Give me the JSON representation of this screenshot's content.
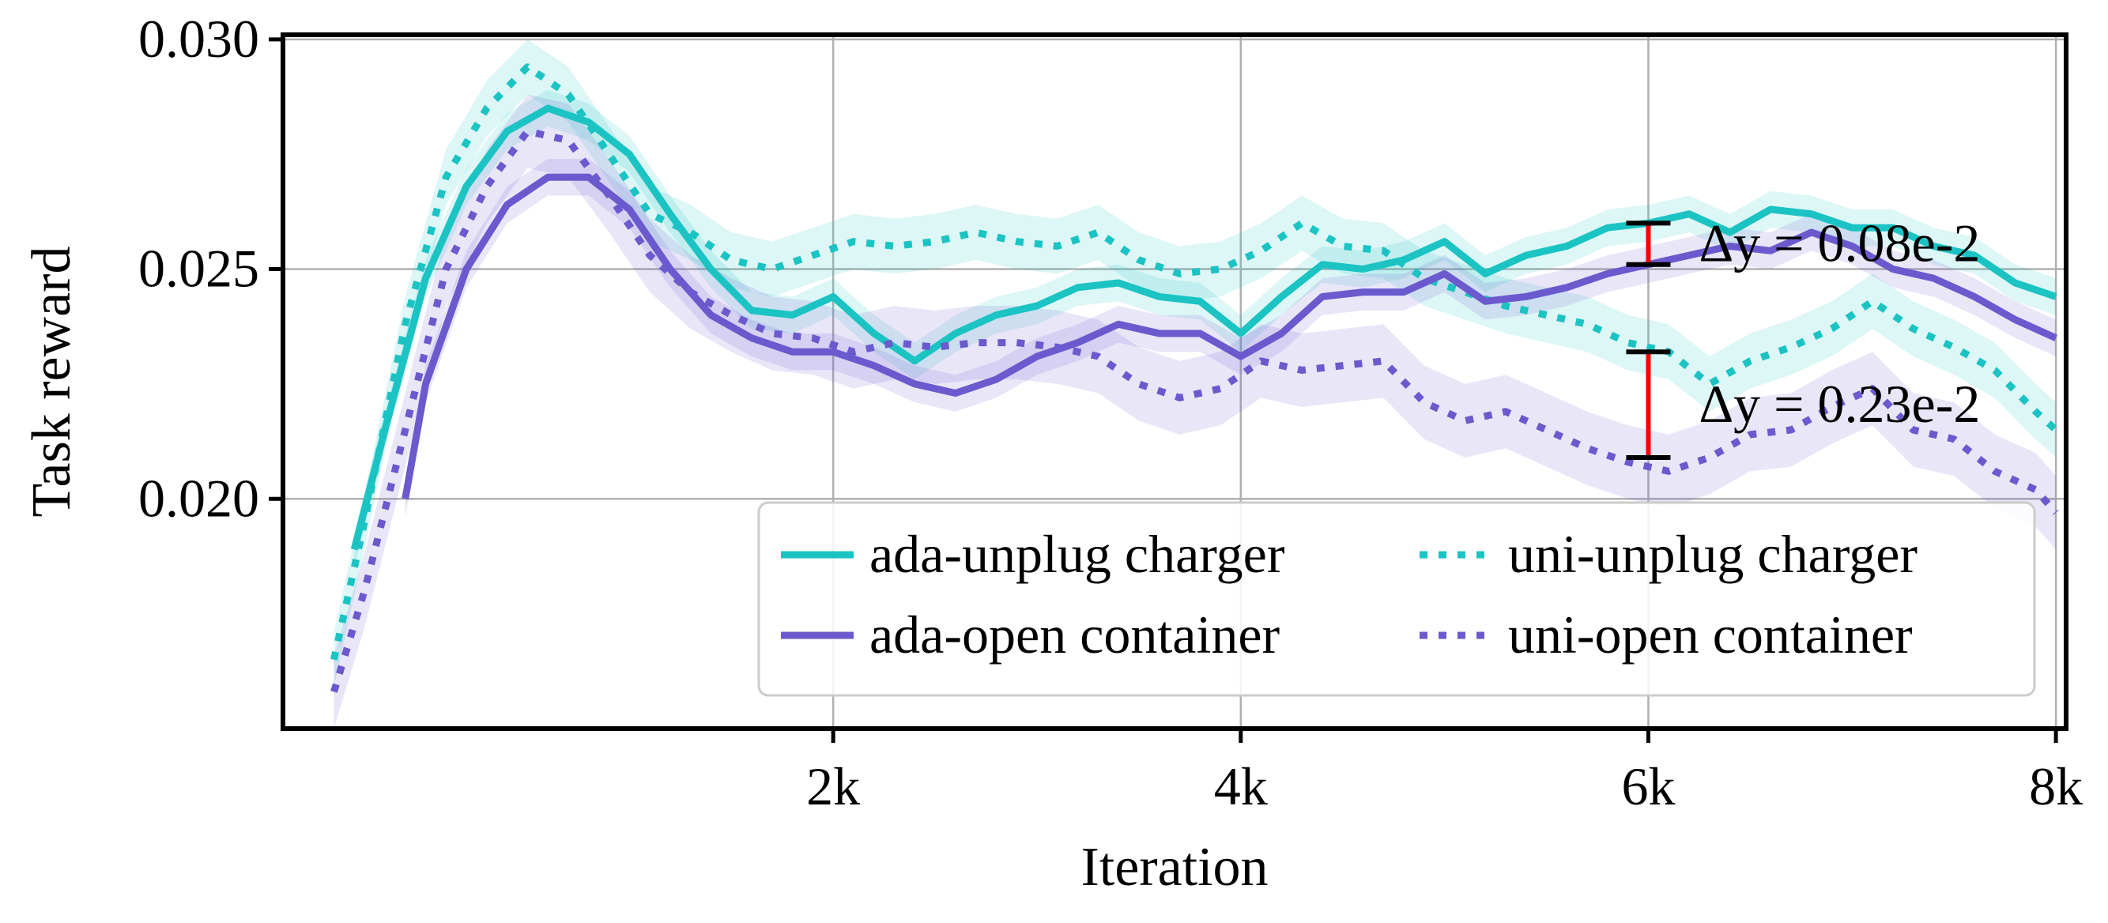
{
  "chart_data": {
    "type": "line",
    "xlabel": "Iteration",
    "ylabel": "Task reward",
    "xlim": [
      -700,
      8050
    ],
    "ylim": [
      0.015,
      0.0301
    ],
    "xticks": [
      {
        "value": 2000,
        "label": "2k"
      },
      {
        "value": 4000,
        "label": "4k"
      },
      {
        "value": 6000,
        "label": "6k"
      },
      {
        "value": 8000,
        "label": "8k"
      }
    ],
    "yticks": [
      {
        "value": 0.02,
        "label": "0.020"
      },
      {
        "value": 0.025,
        "label": "0.025"
      },
      {
        "value": 0.03,
        "label": "0.030"
      }
    ],
    "grid": true,
    "legend": {
      "position": "lower-right",
      "columns": 2
    },
    "series": [
      {
        "name": "ada-unplug charger",
        "color": "#1BC3C3",
        "style": "solid",
        "x": [
          -350,
          -200,
          0,
          200,
          400,
          600,
          800,
          1000,
          1200,
          1400,
          1600,
          1800,
          2000,
          2200,
          2400,
          2600,
          2800,
          3000,
          3200,
          3400,
          3600,
          3800,
          4000,
          4200,
          4400,
          4600,
          4800,
          5000,
          5200,
          5400,
          5600,
          5800,
          6000,
          6200,
          6400,
          6600,
          6800,
          7000,
          7200,
          7400,
          7600,
          7800,
          8000
        ],
        "y": [
          0.0189,
          0.0215,
          0.0248,
          0.0268,
          0.028,
          0.0285,
          0.0282,
          0.0275,
          0.0262,
          0.025,
          0.0241,
          0.024,
          0.0244,
          0.0236,
          0.023,
          0.0236,
          0.024,
          0.0242,
          0.0246,
          0.0247,
          0.0244,
          0.0243,
          0.0236,
          0.0244,
          0.0251,
          0.025,
          0.0252,
          0.0256,
          0.0249,
          0.0253,
          0.0255,
          0.0259,
          0.026,
          0.0262,
          0.0258,
          0.0263,
          0.0262,
          0.0259,
          0.0259,
          0.0255,
          0.0253,
          0.0247,
          0.0244
        ],
        "band": 0.0004
      },
      {
        "name": "uni-unplug charger",
        "color": "#1BC3C3",
        "style": "dotted",
        "x": [
          -450,
          -300,
          -100,
          100,
          300,
          500,
          700,
          900,
          1100,
          1300,
          1500,
          1700,
          1900,
          2100,
          2300,
          2500,
          2700,
          2900,
          3100,
          3300,
          3500,
          3700,
          3900,
          4100,
          4300,
          4500,
          4700,
          4900,
          5100,
          5300,
          5500,
          5700,
          5900,
          6100,
          6300,
          6500,
          6700,
          6900,
          7100,
          7300,
          7500,
          7700,
          7900,
          8000
        ],
        "y": [
          0.0165,
          0.0195,
          0.0238,
          0.027,
          0.0285,
          0.0294,
          0.0288,
          0.0275,
          0.0262,
          0.0258,
          0.0252,
          0.025,
          0.0253,
          0.0256,
          0.0255,
          0.0256,
          0.0258,
          0.0256,
          0.0255,
          0.0258,
          0.0252,
          0.0249,
          0.025,
          0.0254,
          0.026,
          0.0255,
          0.0254,
          0.0248,
          0.0245,
          0.0242,
          0.024,
          0.0238,
          0.0234,
          0.0232,
          0.0225,
          0.023,
          0.0233,
          0.0237,
          0.0243,
          0.0237,
          0.0233,
          0.0228,
          0.0219,
          0.0215
        ],
        "band": 0.0006
      },
      {
        "name": "ada-open container",
        "color": "#6A5ACD",
        "style": "solid",
        "x": [
          -100,
          0,
          200,
          400,
          600,
          800,
          1000,
          1200,
          1400,
          1600,
          1800,
          2000,
          2200,
          2400,
          2600,
          2800,
          3000,
          3200,
          3400,
          3600,
          3800,
          4000,
          4200,
          4400,
          4600,
          4800,
          5000,
          5200,
          5400,
          5600,
          5800,
          6000,
          6200,
          6400,
          6600,
          6800,
          7000,
          7200,
          7400,
          7600,
          7800,
          8000
        ],
        "y": [
          0.02,
          0.0225,
          0.025,
          0.0264,
          0.027,
          0.027,
          0.0263,
          0.025,
          0.024,
          0.0235,
          0.0232,
          0.0232,
          0.0229,
          0.0225,
          0.0223,
          0.0226,
          0.0231,
          0.0234,
          0.0238,
          0.0236,
          0.0236,
          0.0231,
          0.0236,
          0.0244,
          0.0245,
          0.0245,
          0.0249,
          0.0243,
          0.0244,
          0.0246,
          0.0249,
          0.0251,
          0.0253,
          0.0255,
          0.0254,
          0.0258,
          0.0255,
          0.025,
          0.0248,
          0.0244,
          0.0239,
          0.0235
        ],
        "band": 0.0004
      },
      {
        "name": "uni-open container",
        "color": "#6A5ACD",
        "style": "dotted",
        "x": [
          -450,
          -300,
          -100,
          100,
          300,
          500,
          700,
          900,
          1100,
          1300,
          1500,
          1700,
          1900,
          2100,
          2300,
          2500,
          2700,
          2900,
          3100,
          3300,
          3500,
          3700,
          3900,
          4100,
          4300,
          4500,
          4700,
          4900,
          5100,
          5300,
          5500,
          5700,
          5900,
          6100,
          6300,
          6500,
          6700,
          6900,
          7100,
          7300,
          7500,
          7700,
          7900,
          8000
        ],
        "y": [
          0.0158,
          0.018,
          0.0215,
          0.025,
          0.0268,
          0.028,
          0.0278,
          0.0266,
          0.0253,
          0.0245,
          0.024,
          0.0236,
          0.0235,
          0.0232,
          0.0234,
          0.0233,
          0.0234,
          0.0234,
          0.0233,
          0.0231,
          0.0225,
          0.0222,
          0.0224,
          0.023,
          0.0228,
          0.0229,
          0.023,
          0.0221,
          0.0217,
          0.0219,
          0.0215,
          0.0211,
          0.0208,
          0.0206,
          0.0209,
          0.0214,
          0.0215,
          0.022,
          0.0224,
          0.0215,
          0.0213,
          0.0206,
          0.0202,
          0.0197
        ],
        "band": 0.0008
      }
    ],
    "annotations": [
      {
        "label": "Δy = 0.08e-2",
        "x": 6000,
        "y_low": 0.0251,
        "y_high": 0.026
      },
      {
        "label": "Δy = 0.23e-2",
        "x": 6000,
        "y_low": 0.0209,
        "y_high": 0.0232
      }
    ]
  }
}
